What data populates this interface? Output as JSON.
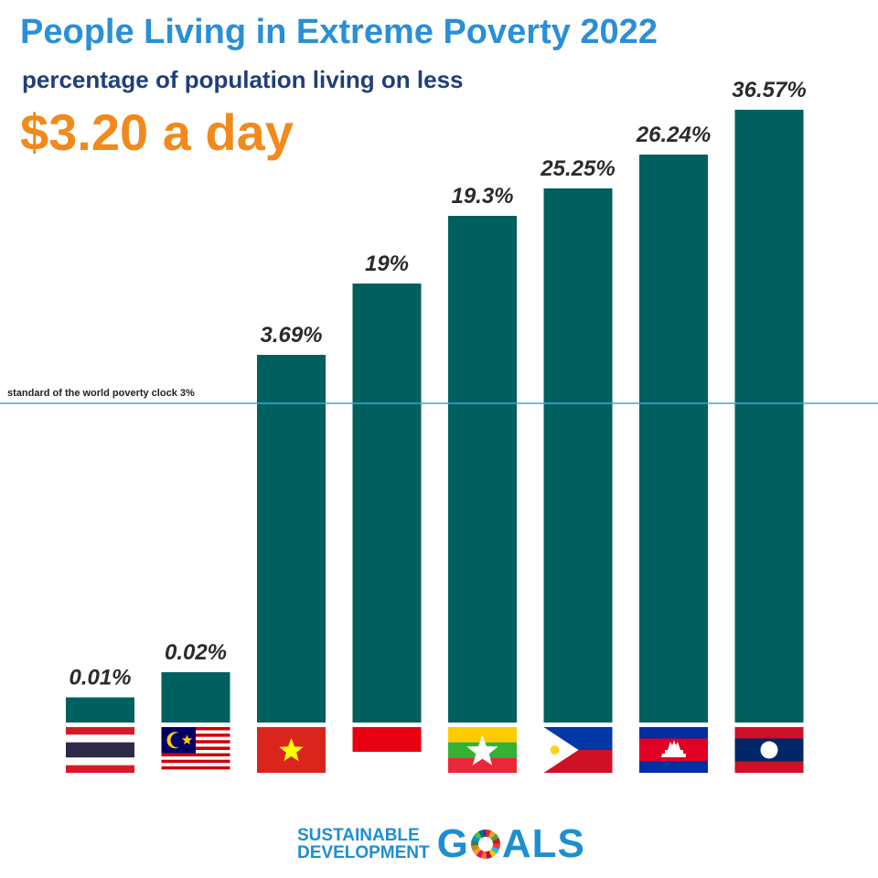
{
  "header": {
    "title": "People Living in Extreme Poverty 2022",
    "subtitle": "percentage of population living on less",
    "highlight": "$3.20 a day"
  },
  "colors": {
    "bar": "#005f5f",
    "title": "#2a8fd6",
    "subtitle": "#1f3f7a",
    "highlight": "#f08a1c",
    "reference_line": "#3aa8d8"
  },
  "reference_line": {
    "label": "standard of the world poverty clock 3%",
    "value": 3
  },
  "chart_data": {
    "type": "bar",
    "categories": [
      "Thailand",
      "Malaysia",
      "Vietnam",
      "Indonesia",
      "Myanmar",
      "Philippines",
      "Cambodia",
      "Laos"
    ],
    "values": [
      0.01,
      0.02,
      3.69,
      19,
      19.3,
      25.25,
      26.24,
      36.57
    ],
    "labels": [
      "0.01%",
      "0.02%",
      "3.69%",
      "19%",
      "19.3%",
      "25.25%",
      "26.24%",
      "36.57%"
    ],
    "category_icons": [
      "thailand-flag",
      "malaysia-flag",
      "vietnam-flag",
      "indonesia-flag",
      "myanmar-flag",
      "philippines-flag",
      "cambodia-flag",
      "laos-flag"
    ],
    "scale": "non-linear (broken), not to scale",
    "grid": false,
    "legend": "none"
  },
  "footer": {
    "line1": "SUSTAINABLE",
    "line2": "DEVELOPMENT",
    "goals_g": "G",
    "goals_rest": "ALS"
  }
}
